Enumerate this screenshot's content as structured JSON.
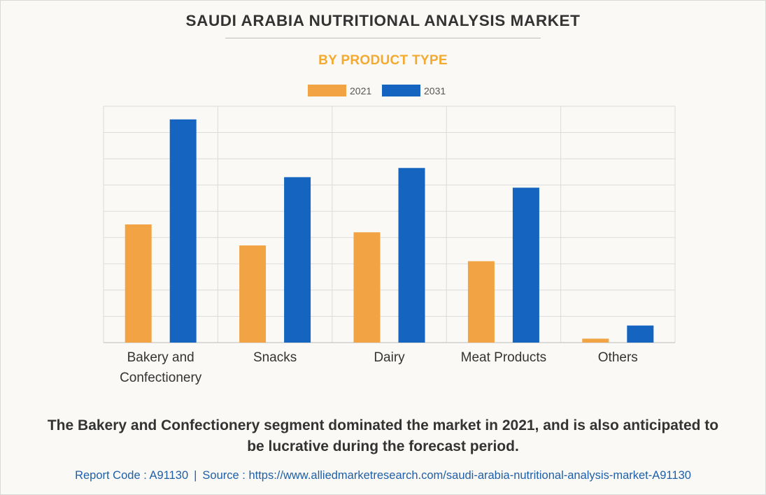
{
  "title": "SAUDI ARABIA NUTRITIONAL ANALYSIS MARKET",
  "subtitle": "BY PRODUCT TYPE",
  "caption": "The Bakery and Confectionery segment dominated the market in 2021, and is also anticipated to be lucrative during the forecast period.",
  "footer": {
    "report_code": "Report Code : A91130",
    "separator": "|",
    "source": "Source : https://www.alliedmarketresearch.com/saudi-arabia-nutritional-analysis-market-A91130"
  },
  "colors": {
    "series_2021": "#f2a444",
    "series_2031": "#1565c0",
    "grid": "#dcdcdc",
    "text": "#333333"
  },
  "chart_data": {
    "type": "bar",
    "categories": [
      [
        "Bakery and",
        "Confectionery"
      ],
      [
        "Snacks"
      ],
      [
        "Dairy"
      ],
      [
        "Meat Products"
      ],
      [
        "Others"
      ]
    ],
    "series": [
      {
        "name": "2021",
        "values": [
          45,
          37,
          42,
          31,
          1.5
        ]
      },
      {
        "name": "2031",
        "values": [
          85,
          63,
          66.5,
          59,
          6.5
        ]
      }
    ],
    "ylim": [
      0,
      90
    ],
    "y_tick_step": 10,
    "y_tick_labels_shown": false,
    "grid": true,
    "legend": "top-center"
  }
}
